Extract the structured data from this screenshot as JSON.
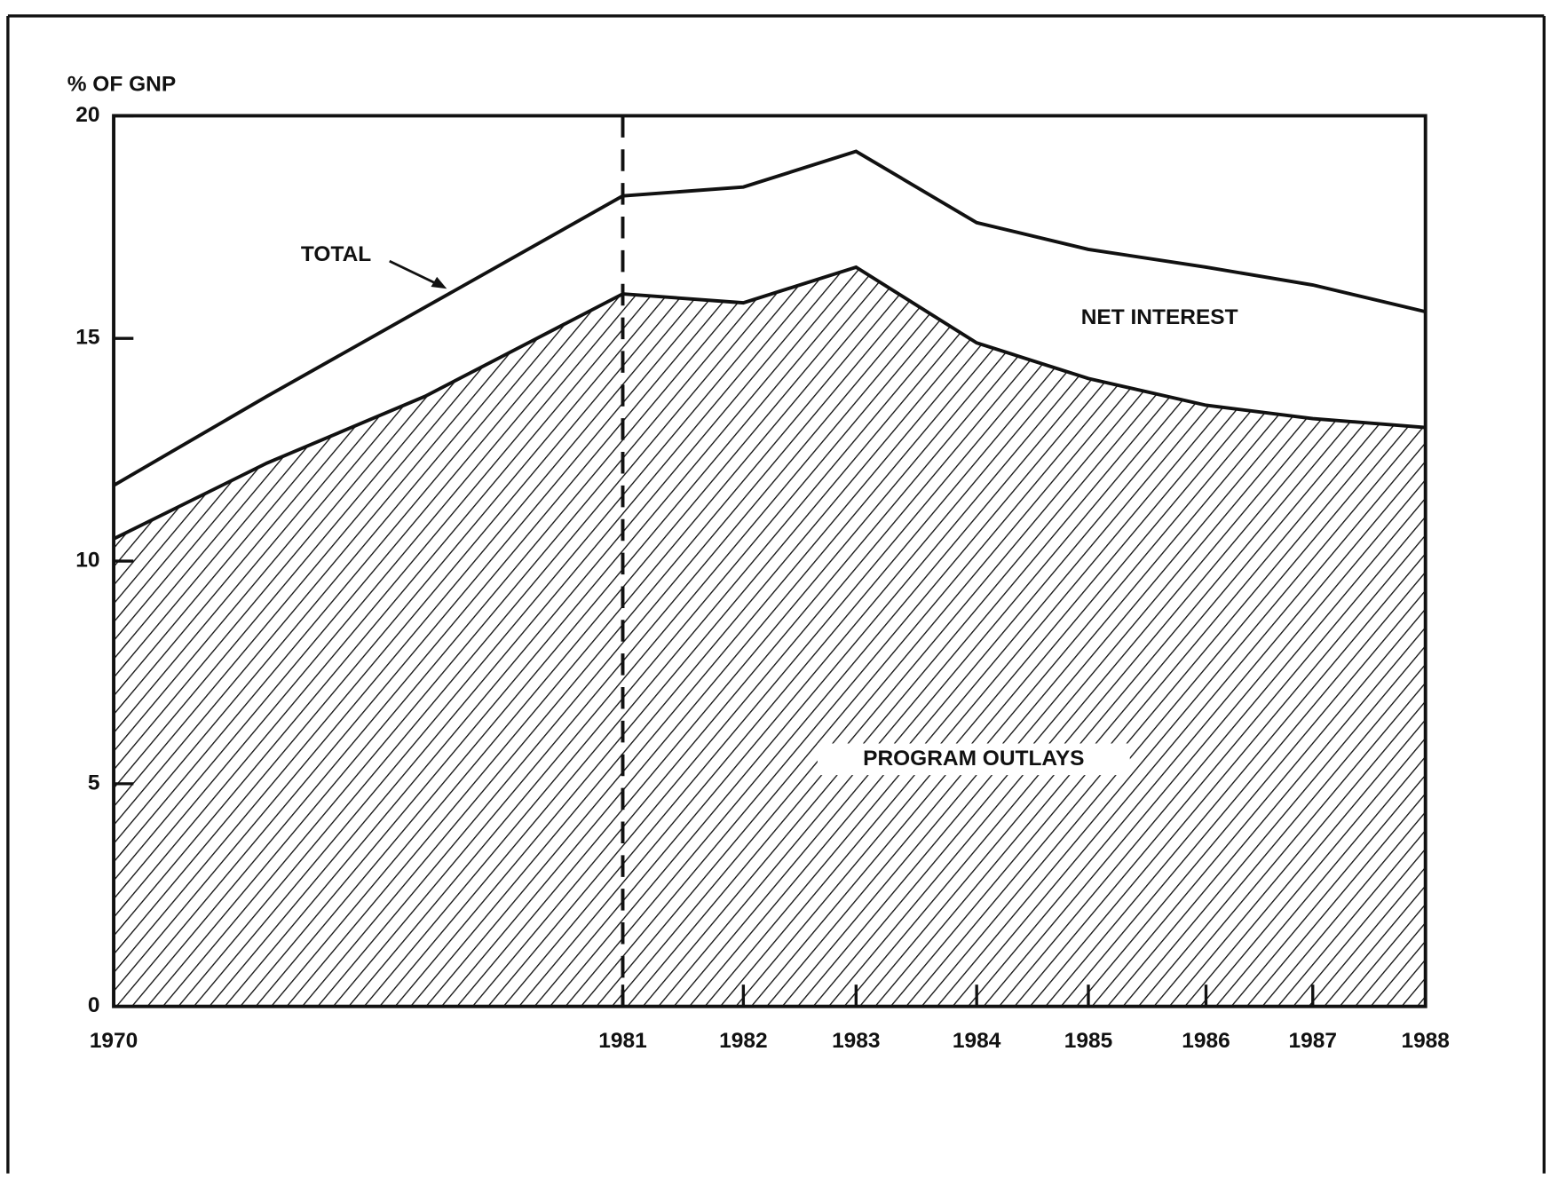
{
  "chart_data": {
    "type": "area",
    "ylabel": "% OF GNP",
    "categories": [
      "1970",
      null,
      null,
      "1981",
      "1982",
      "1983",
      "1984",
      "1985",
      "1986",
      "1987",
      "1988"
    ],
    "series": [
      {
        "name": "PROGRAM OUTLAYS",
        "color": "#111111",
        "hatched": true,
        "values": [
          10.5,
          12.2,
          13.7,
          16.0,
          15.8,
          16.6,
          14.9,
          14.1,
          13.5,
          13.2,
          13.0
        ]
      },
      {
        "name": "TOTAL",
        "color": "#111111",
        "values": [
          11.7,
          13.7,
          15.7,
          18.2,
          18.4,
          19.2,
          17.6,
          17.0,
          16.6,
          16.2,
          15.6
        ]
      }
    ],
    "annotations": [
      "TOTAL",
      "NET INTEREST",
      "PROGRAM OUTLAYS"
    ],
    "ylim": [
      0,
      20
    ],
    "yticks": [
      0,
      5,
      10,
      15,
      20
    ]
  }
}
